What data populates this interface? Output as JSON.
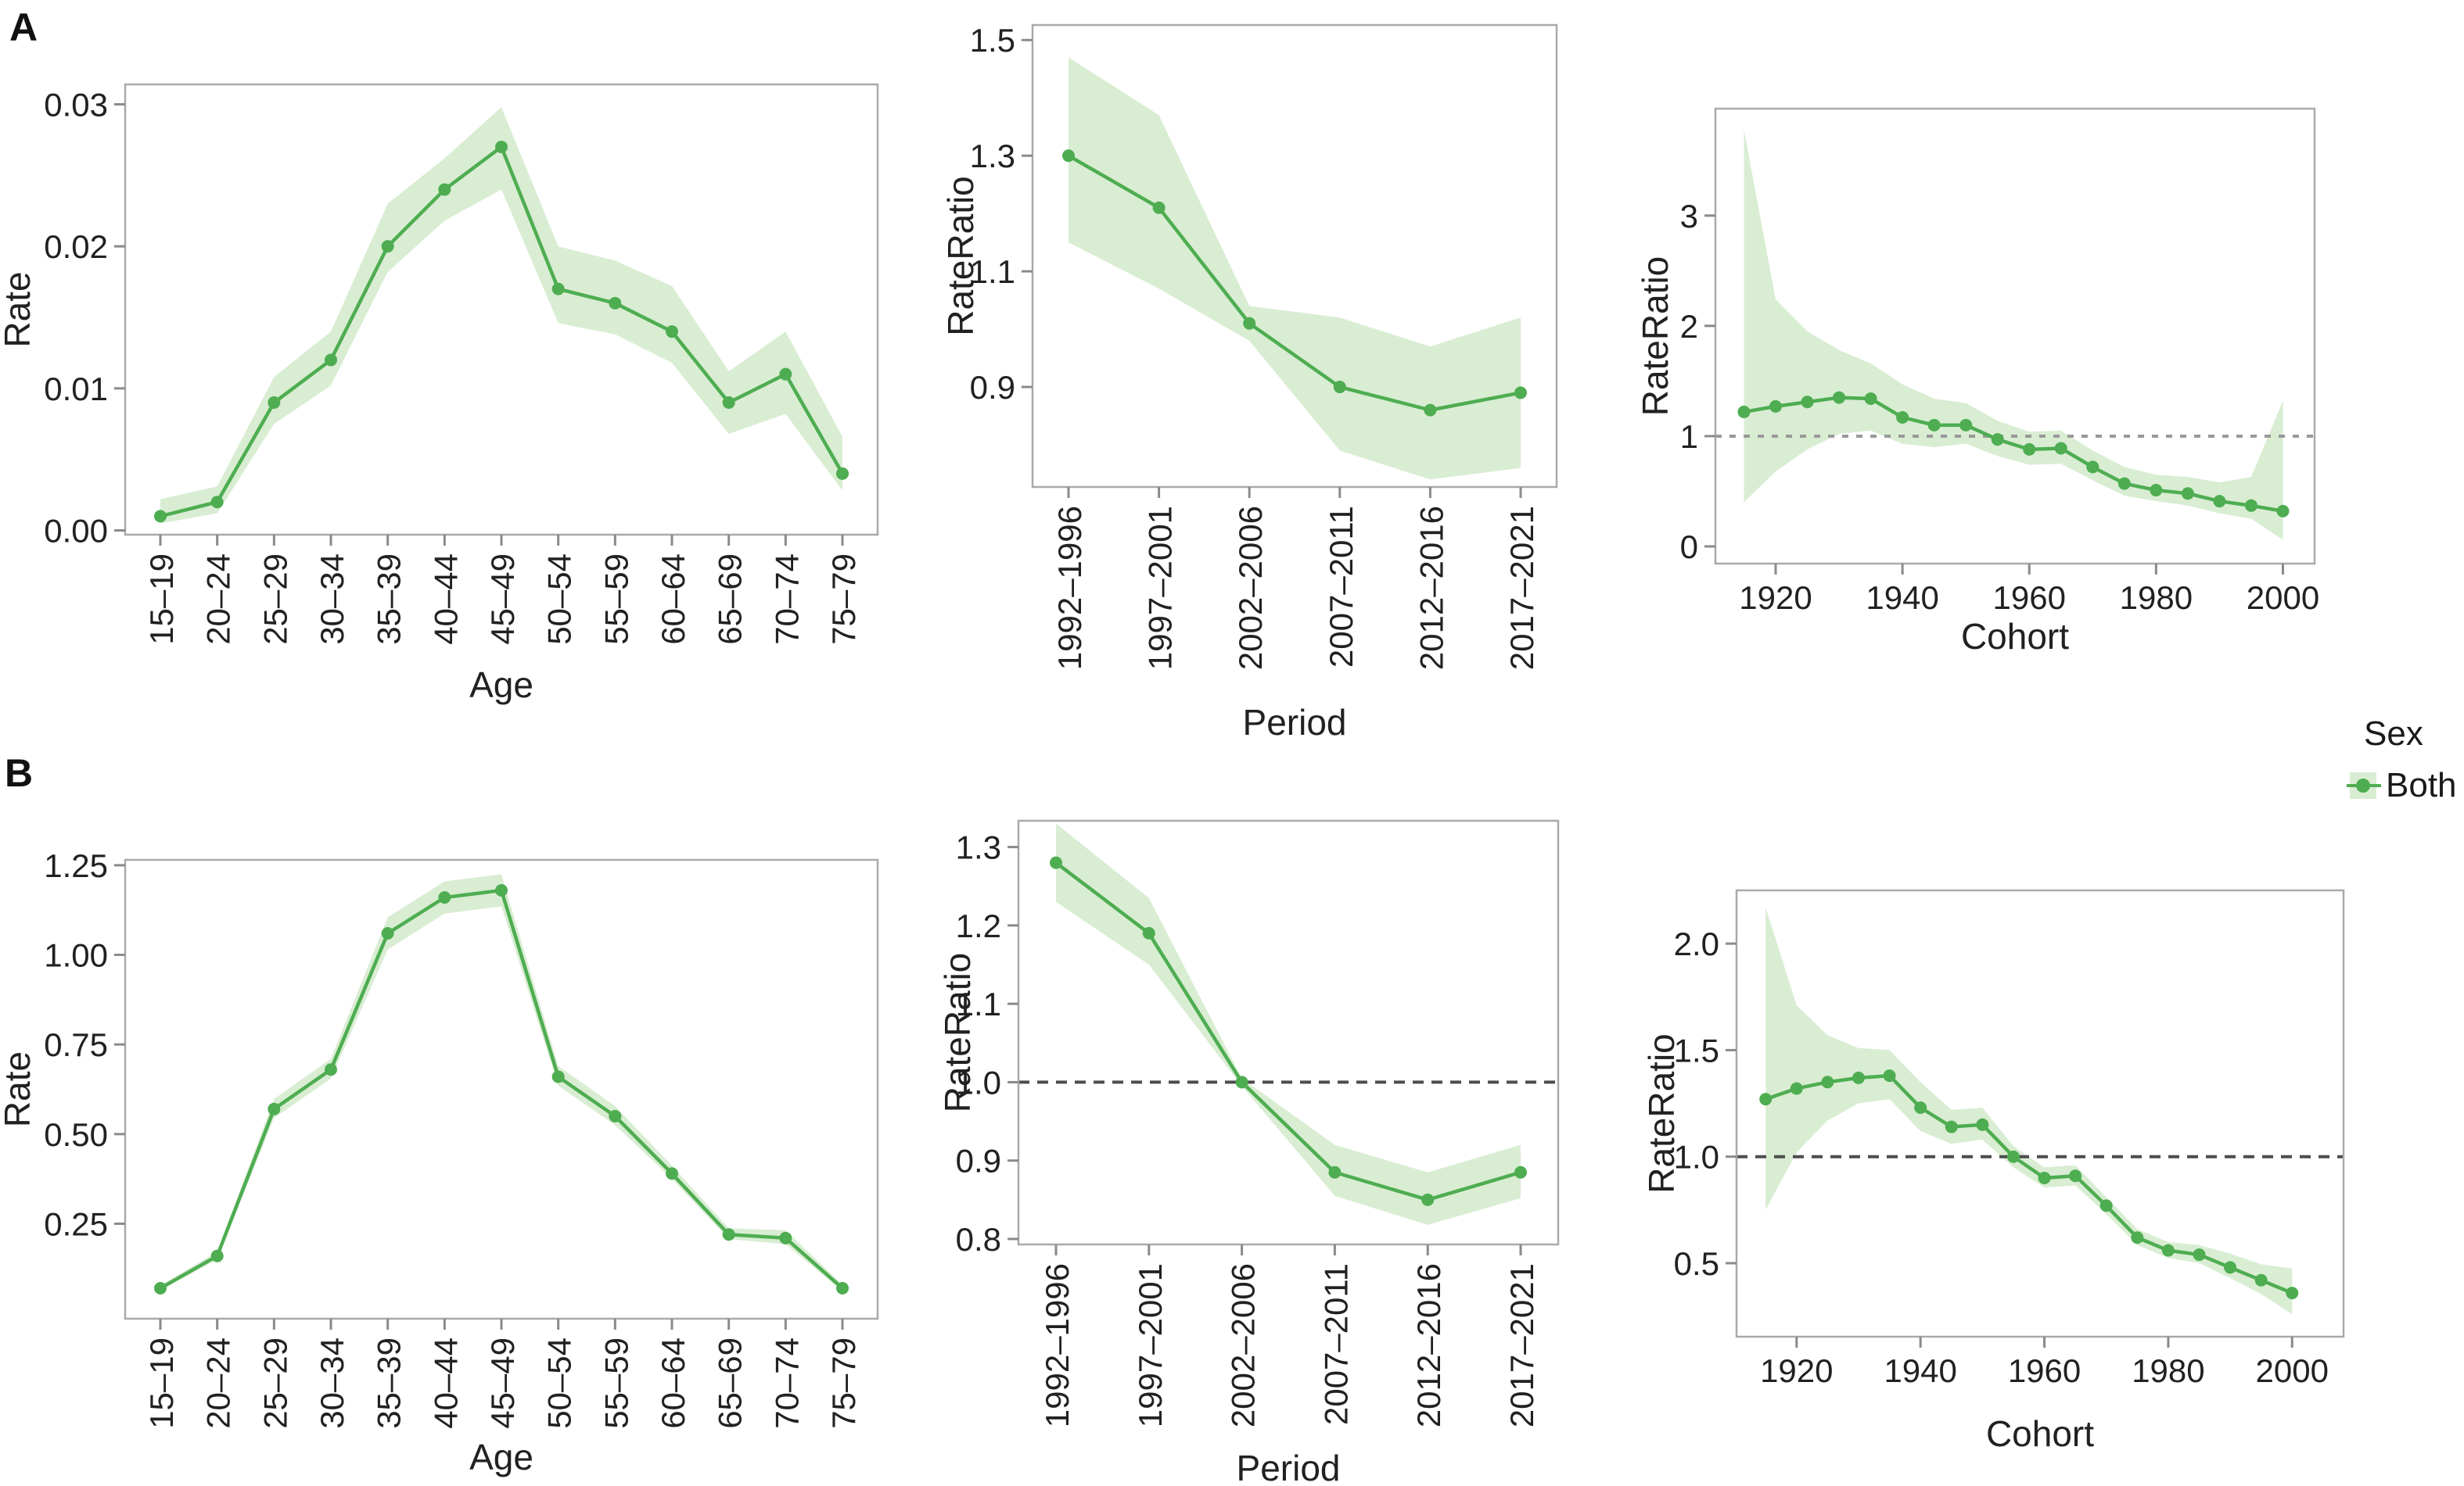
{
  "figure": {
    "panel_a_label": "A",
    "panel_b_label": "B",
    "colors": {
      "line": "#4ead51",
      "band": "#d9edd3",
      "border": "#a9a9a9",
      "tick_mark": "#8a8a8a",
      "text": "#212121",
      "refline_gray": "#999999",
      "refline_dark": "#4d4d4d"
    }
  },
  "legend": {
    "title": "Sex",
    "item_label": "Both"
  },
  "chart_data": [
    {
      "id": "A_age_rate",
      "panel": "A",
      "type": "line",
      "x_type": "category",
      "xlabel": "Age",
      "ylabel": "Rate",
      "categories": [
        "15–19",
        "20–24",
        "25–29",
        "30–34",
        "35–39",
        "40–44",
        "45–49",
        "50–54",
        "55–59",
        "60–64",
        "65–69",
        "70–74",
        "75–79"
      ],
      "values": [
        0.001,
        0.002,
        0.009,
        0.012,
        0.02,
        0.024,
        0.027,
        0.017,
        0.016,
        0.014,
        0.009,
        0.011,
        0.004
      ],
      "ci_lower": [
        0.0005,
        0.0012,
        0.0075,
        0.0102,
        0.0182,
        0.0218,
        0.024,
        0.0146,
        0.0138,
        0.0118,
        0.0068,
        0.0082,
        0.0028
      ],
      "ci_upper": [
        0.0022,
        0.0031,
        0.0108,
        0.014,
        0.023,
        0.0262,
        0.0298,
        0.02,
        0.019,
        0.0172,
        0.0112,
        0.014,
        0.0066
      ],
      "yticks": [
        0,
        0.01,
        0.02,
        0.03
      ],
      "ytick_labels": [
        "0.00",
        "0.01",
        "0.02",
        "0.03"
      ],
      "ylim": [
        -0.0003,
        0.0314
      ],
      "rotate_x_labels": true,
      "refline": null,
      "refline_style": null,
      "grid": false
    },
    {
      "id": "A_period_rateratio",
      "panel": "A",
      "type": "line",
      "x_type": "category",
      "xlabel": "Period",
      "ylabel": "RateRatio",
      "categories": [
        "1992–1996",
        "1997–2001",
        "2002–2006",
        "2007–2011",
        "2012–2016",
        "2017–2021"
      ],
      "values": [
        1.3,
        1.21,
        1.01,
        0.9,
        0.86,
        0.89
      ],
      "ci_lower": [
        1.15,
        1.07,
        0.98,
        0.79,
        0.74,
        0.76
      ],
      "ci_upper": [
        1.47,
        1.37,
        1.04,
        1.02,
        0.97,
        1.02
      ],
      "yticks": [
        0.9,
        1.1,
        1.3,
        1.5
      ],
      "ytick_labels": [
        "0.9",
        "1.1",
        "1.3",
        "1.5"
      ],
      "ylim": [
        0.727,
        1.526
      ],
      "rotate_x_labels": true,
      "refline": null,
      "refline_style": null,
      "grid": false
    },
    {
      "id": "A_cohort_rateratio",
      "panel": "A",
      "type": "line",
      "x_type": "numeric",
      "xlabel": "Cohort",
      "ylabel": "RateRatio",
      "x": [
        1915,
        1920,
        1925,
        1930,
        1935,
        1940,
        1945,
        1950,
        1955,
        1960,
        1965,
        1970,
        1975,
        1980,
        1985,
        1990,
        1995,
        2000
      ],
      "values": [
        1.22,
        1.27,
        1.31,
        1.35,
        1.34,
        1.17,
        1.1,
        1.1,
        0.97,
        0.88,
        0.89,
        0.72,
        0.57,
        0.51,
        0.48,
        0.41,
        0.37,
        0.32
      ],
      "ci_lower": [
        0.4,
        0.68,
        0.88,
        1.02,
        1.05,
        0.93,
        0.9,
        0.93,
        0.82,
        0.74,
        0.75,
        0.6,
        0.46,
        0.41,
        0.37,
        0.3,
        0.25,
        0.06
      ],
      "ci_upper": [
        3.78,
        2.24,
        1.95,
        1.78,
        1.66,
        1.47,
        1.34,
        1.3,
        1.14,
        1.04,
        1.05,
        0.87,
        0.72,
        0.65,
        0.63,
        0.58,
        0.63,
        1.32
      ],
      "yticks": [
        0,
        1,
        2,
        3
      ],
      "ytick_labels": [
        "0",
        "1",
        "2",
        "3"
      ],
      "ylim": [
        -0.156,
        3.97
      ],
      "xticks": [
        1920,
        1940,
        1960,
        1980,
        2000
      ],
      "xlim": [
        1910.5,
        2005
      ],
      "rotate_x_labels": false,
      "refline": 1,
      "refline_style": "gray",
      "grid": false
    },
    {
      "id": "B_age_rate",
      "panel": "B",
      "type": "line",
      "x_type": "category",
      "xlabel": "Age",
      "ylabel": "Rate",
      "categories": [
        "15–19",
        "20–24",
        "25–29",
        "30–34",
        "35–39",
        "40–44",
        "45–49",
        "50–54",
        "55–59",
        "60–64",
        "65–69",
        "70–74",
        "75–79"
      ],
      "values": [
        0.07,
        0.16,
        0.57,
        0.68,
        1.06,
        1.16,
        1.18,
        0.66,
        0.55,
        0.39,
        0.22,
        0.21,
        0.07
      ],
      "ci_lower": [
        0.065,
        0.15,
        0.545,
        0.655,
        1.015,
        1.115,
        1.135,
        0.635,
        0.525,
        0.375,
        0.207,
        0.193,
        0.062
      ],
      "ci_upper": [
        0.078,
        0.172,
        0.598,
        0.71,
        1.105,
        1.205,
        1.225,
        0.69,
        0.578,
        0.412,
        0.237,
        0.232,
        0.08
      ],
      "yticks": [
        0.25,
        0.5,
        0.75,
        1.0,
        1.25
      ],
      "ytick_labels": [
        "0.25",
        "0.50",
        "0.75",
        "1.00",
        "1.25"
      ],
      "ylim": [
        -0.015,
        1.265
      ],
      "rotate_x_labels": true,
      "refline": null,
      "refline_style": null,
      "grid": false
    },
    {
      "id": "B_period_rateratio",
      "panel": "B",
      "type": "line",
      "x_type": "category",
      "xlabel": "Period",
      "ylabel": "RateRatio",
      "categories": [
        "1992–1996",
        "1997–2001",
        "2002–2006",
        "2007–2011",
        "2012–2016",
        "2017–2021"
      ],
      "values": [
        1.28,
        1.19,
        1.0,
        0.885,
        0.85,
        0.885
      ],
      "ci_lower": [
        1.23,
        1.15,
        0.995,
        0.855,
        0.818,
        0.852
      ],
      "ci_upper": [
        1.33,
        1.235,
        1.005,
        0.92,
        0.885,
        0.92
      ],
      "yticks": [
        0.8,
        0.9,
        1.0,
        1.1,
        1.2,
        1.3
      ],
      "ytick_labels": [
        "0.8",
        "0.9",
        "1.0",
        "1.1",
        "1.2",
        "1.3"
      ],
      "ylim": [
        0.793,
        1.3335
      ],
      "rotate_x_labels": true,
      "refline": 1,
      "refline_style": "dark",
      "grid": false
    },
    {
      "id": "B_cohort_rateratio",
      "panel": "B",
      "type": "line",
      "x_type": "numeric",
      "xlabel": "Cohort",
      "ylabel": "RateRatio",
      "x": [
        1915,
        1920,
        1925,
        1930,
        1935,
        1940,
        1945,
        1950,
        1955,
        1960,
        1965,
        1970,
        1975,
        1980,
        1985,
        1990,
        1995,
        2000
      ],
      "values": [
        1.27,
        1.32,
        1.35,
        1.37,
        1.38,
        1.23,
        1.14,
        1.15,
        1.0,
        0.9,
        0.91,
        0.77,
        0.62,
        0.56,
        0.54,
        0.48,
        0.42,
        0.36
      ],
      "ci_lower": [
        0.75,
        1.02,
        1.17,
        1.25,
        1.27,
        1.12,
        1.06,
        1.08,
        0.95,
        0.855,
        0.865,
        0.73,
        0.585,
        0.525,
        0.5,
        0.43,
        0.355,
        0.26
      ],
      "ci_upper": [
        2.17,
        1.71,
        1.57,
        1.51,
        1.5,
        1.35,
        1.22,
        1.23,
        1.05,
        0.95,
        0.96,
        0.81,
        0.66,
        0.6,
        0.585,
        0.545,
        0.495,
        0.475
      ],
      "yticks": [
        0.5,
        1.0,
        1.5,
        2.0
      ],
      "ytick_labels": [
        "0.5",
        "1.0",
        "1.5",
        "2.0"
      ],
      "ylim": [
        0.155,
        2.25
      ],
      "xticks": [
        1920,
        1940,
        1960,
        1980,
        2000
      ],
      "xlim": [
        1910.3,
        2008.3
      ],
      "rotate_x_labels": false,
      "refline": 1,
      "refline_style": "dark",
      "grid": false
    }
  ]
}
